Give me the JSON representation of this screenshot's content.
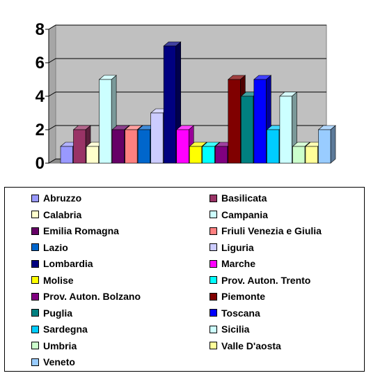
{
  "chart_data": {
    "type": "bar",
    "ylim": [
      0,
      8
    ],
    "yticks": [
      "0",
      "2",
      "4",
      "6",
      "8"
    ],
    "grid": true,
    "legend_placement": "bottom",
    "categories": [
      "Abruzzo",
      "Basilicata",
      "Calabria",
      "Campania",
      "Emilia Romagna",
      "Friuli Venezia e Giulia",
      "Lazio",
      "Liguria",
      "Lombardia",
      "Marche",
      "Molise",
      "Prov. Auton. Trento",
      "Prov. Auton. Bolzano",
      "Piemonte",
      "Puglia",
      "Toscana",
      "Sardegna",
      "Sicilia",
      "Umbria",
      "Valle D'aosta",
      "Veneto"
    ],
    "values": [
      1,
      2,
      1,
      5,
      2,
      2,
      2,
      3,
      7,
      2,
      1,
      1,
      1,
      5,
      4,
      5,
      2,
      4,
      1,
      1,
      2
    ],
    "colors": [
      "#9999ff",
      "#993366",
      "#ffffcc",
      "#ccffff",
      "#660066",
      "#ff8080",
      "#0066cc",
      "#ccccff",
      "#000080",
      "#ff00ff",
      "#ffff00",
      "#00ffff",
      "#800080",
      "#800000",
      "#008080",
      "#0000ff",
      "#00ccff",
      "#ccffff",
      "#ccffcc",
      "#ffff99",
      "#99ccff"
    ]
  }
}
